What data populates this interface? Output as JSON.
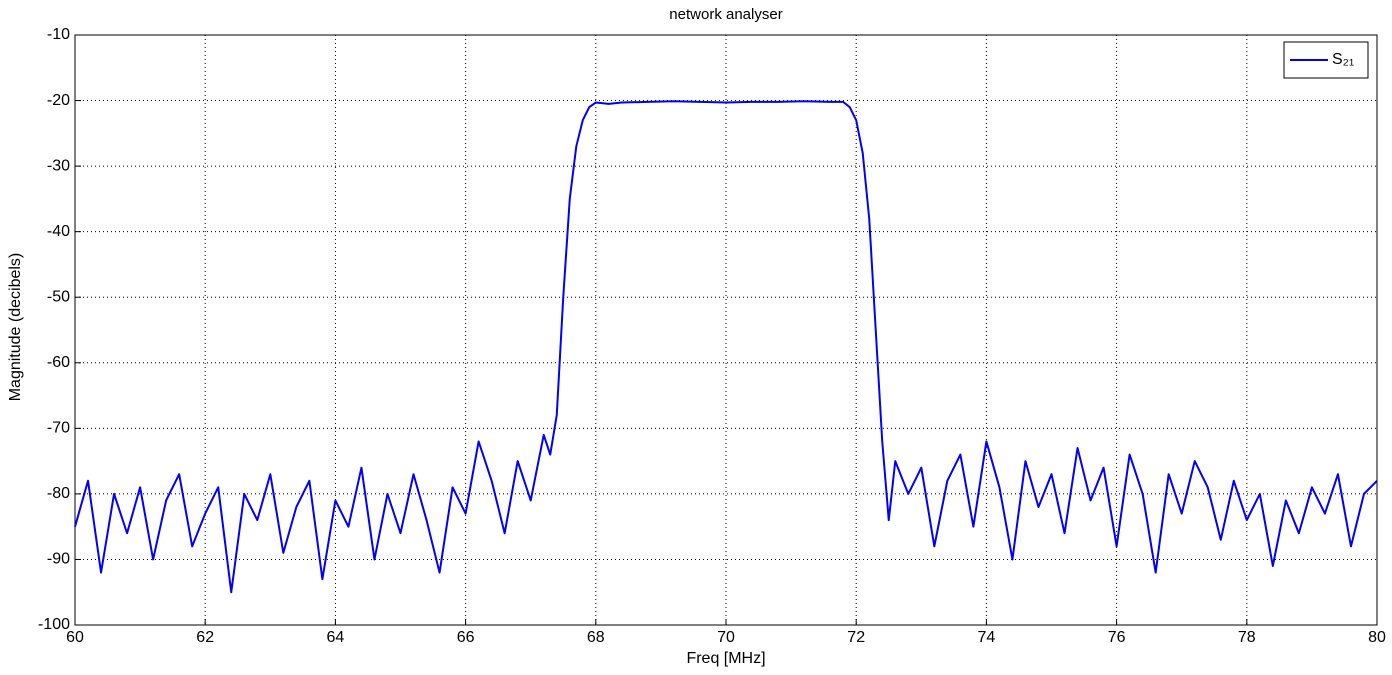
{
  "chart_data": {
    "type": "line",
    "title": "network analyser",
    "x_label": "Freq [MHz]",
    "y_label": "Magnitude (decibels)",
    "x": [
      60,
      60.2,
      60.4,
      60.6,
      60.8,
      61,
      61.2,
      61.4,
      61.6,
      61.8,
      62,
      62.2,
      62.4,
      62.6,
      62.8,
      63,
      63.2,
      63.4,
      63.6,
      63.8,
      64,
      64.2,
      64.4,
      64.6,
      64.8,
      65,
      65.2,
      65.4,
      65.6,
      65.8,
      66,
      66.2,
      66.4,
      66.6,
      66.8,
      67,
      67.2,
      67.3,
      67.4,
      67.5,
      67.6,
      67.7,
      67.8,
      67.9,
      68,
      68.2,
      68.4,
      68.8,
      69.2,
      69.6,
      70,
      70.4,
      70.8,
      71.2,
      71.6,
      71.8,
      71.9,
      72,
      72.1,
      72.2,
      72.3,
      72.4,
      72.5,
      72.6,
      72.8,
      73,
      73.2,
      73.4,
      73.6,
      73.8,
      74,
      74.2,
      74.4,
      74.6,
      74.8,
      75,
      75.2,
      75.4,
      75.6,
      75.8,
      76,
      76.2,
      76.4,
      76.6,
      76.8,
      77,
      77.2,
      77.4,
      77.6,
      77.8,
      78,
      78.2,
      78.4,
      78.6,
      78.8,
      79,
      79.2,
      79.4,
      79.6,
      79.8,
      80
    ],
    "series": [
      {
        "name": "S₂₁",
        "color": "#0000ff",
        "values": [
          -85,
          -78,
          -92,
          -80,
          -86,
          -79,
          -90,
          -81,
          -77,
          -88,
          -83,
          -79,
          -95,
          -80,
          -84,
          -77,
          -89,
          -82,
          -78,
          -93,
          -81,
          -85,
          -76,
          -90,
          -80,
          -86,
          -77,
          -84,
          -92,
          -79,
          -83,
          -72,
          -78,
          -86,
          -75,
          -81,
          -71,
          -74,
          -68,
          -50,
          -35,
          -27,
          -23,
          -21,
          -20.3,
          -20.5,
          -20.3,
          -20.2,
          -20.1,
          -20.2,
          -20.3,
          -20.2,
          -20.2,
          -20.1,
          -20.2,
          -20.2,
          -21,
          -23,
          -28,
          -38,
          -55,
          -72,
          -84,
          -75,
          -80,
          -76,
          -88,
          -78,
          -74,
          -85,
          -72,
          -79,
          -90,
          -75,
          -82,
          -77,
          -86,
          -73,
          -81,
          -76,
          -88,
          -74,
          -80,
          -92,
          -77,
          -83,
          -75,
          -79,
          -87,
          -78,
          -84,
          -80,
          -91,
          -81,
          -86,
          -79,
          -83,
          -77,
          -88,
          -80,
          -78
        ]
      }
    ],
    "xlim": [
      60,
      80
    ],
    "xticks": [
      60,
      62,
      64,
      66,
      68,
      70,
      72,
      74,
      76,
      78,
      80
    ],
    "ylim": [
      -100,
      -10
    ],
    "yticks": [
      -100,
      -90,
      -80,
      -70,
      -60,
      -50,
      -40,
      -30,
      -20,
      -10
    ],
    "grid": true,
    "legend": "upper right"
  }
}
